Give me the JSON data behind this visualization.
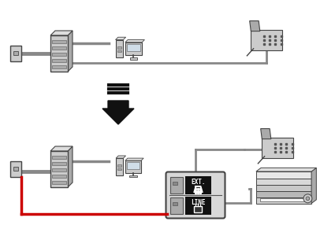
{
  "bg_color": "#ffffff",
  "gray": "#888888",
  "darkgray": "#555555",
  "lightgray": "#cccccc",
  "midgray": "#aaaaaa",
  "black": "#111111",
  "white": "#ffffff",
  "red": "#cc0000",
  "outline": "#444444",
  "ext_label": "EXT.",
  "line_label": "LINE"
}
